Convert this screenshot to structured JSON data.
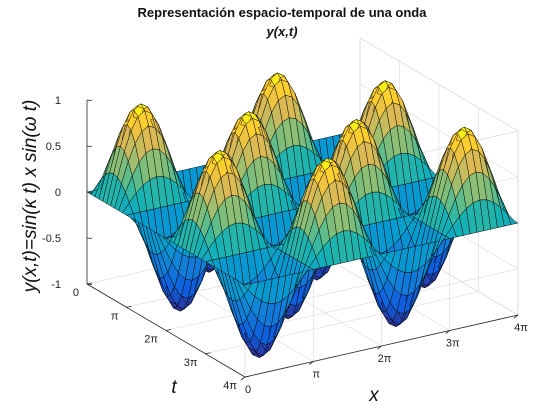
{
  "chart_data": {
    "type": "surface",
    "title": "Representación espacio-temporal de una onda",
    "subtitle": "y(x,t)",
    "xlabel": "x",
    "ylabel": "t",
    "zlabel": "y(x,t)=sin(κ t) x sin(ω t)",
    "function": "sin(x)·sin(t)",
    "x_range": [
      0,
      12.566
    ],
    "t_range": [
      0,
      12.566
    ],
    "zlim": [
      -1,
      1
    ],
    "x_ticks": [
      "0",
      "π",
      "2π",
      "3π",
      "4π"
    ],
    "t_ticks": [
      "0",
      "π",
      "2π",
      "3π",
      "4π"
    ],
    "z_ticks": [
      "-1",
      "-0.5",
      "0",
      "0.5",
      "1"
    ],
    "colormap": "parula",
    "mesh_edge_color": "#000000",
    "grid": true
  }
}
